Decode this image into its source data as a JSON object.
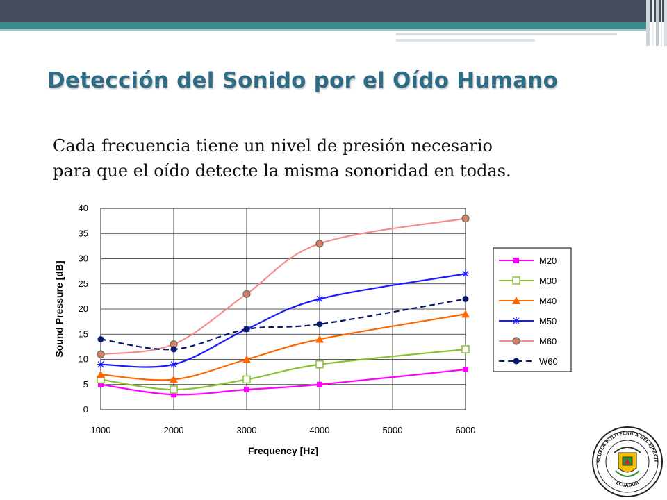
{
  "slide": {
    "title": "Detección del Sonido por el Oído Humano",
    "body_lines": [
      "Cada frecuencia tiene un nivel de presión necesario",
      "para que el oído detecte la misma sonoridad en todas."
    ]
  },
  "seal": {
    "arc_text": "ESCUELA POLITECNICA DEL EJERCITO",
    "bottom_text": "ECUADOR"
  },
  "colors": {
    "title": "#2e6c86",
    "topbar": "#454c5c",
    "teal_band": "#3b8b8c"
  },
  "chart_data": {
    "type": "line",
    "xlabel": "Frequency  [Hz]",
    "ylabel": "Sound Pressure [dB]",
    "x": [
      1000,
      2000,
      3000,
      4000,
      5000,
      6000
    ],
    "xlim": [
      1000,
      6000
    ],
    "ylim": [
      0,
      40
    ],
    "yticks": [
      0,
      5,
      10,
      15,
      20,
      25,
      30,
      35,
      40
    ],
    "grid": true,
    "legend_position": "right",
    "series": [
      {
        "name": "M20",
        "color": "#ff00ff",
        "marker": "square",
        "dash": false,
        "points": [
          [
            1000,
            5
          ],
          [
            2000,
            3
          ],
          [
            3000,
            4
          ],
          [
            4000,
            5
          ],
          [
            6000,
            8
          ]
        ]
      },
      {
        "name": "M30",
        "color": "#88c030",
        "marker": "open-square",
        "dash": false,
        "points": [
          [
            1000,
            6
          ],
          [
            2000,
            4
          ],
          [
            3000,
            6
          ],
          [
            4000,
            9
          ],
          [
            6000,
            12
          ]
        ]
      },
      {
        "name": "M40",
        "color": "#ff6600",
        "marker": "triangle",
        "dash": false,
        "points": [
          [
            1000,
            7
          ],
          [
            2000,
            6
          ],
          [
            3000,
            10
          ],
          [
            4000,
            14
          ],
          [
            6000,
            19
          ]
        ]
      },
      {
        "name": "M50",
        "color": "#1a1aff",
        "marker": "star",
        "dash": false,
        "points": [
          [
            1000,
            9
          ],
          [
            2000,
            9
          ],
          [
            3000,
            16
          ],
          [
            4000,
            22
          ],
          [
            6000,
            27
          ]
        ]
      },
      {
        "name": "M60",
        "color": "#f58c8c",
        "marker": "circle-hex",
        "dash": false,
        "points": [
          [
            1000,
            11
          ],
          [
            2000,
            13
          ],
          [
            3000,
            23
          ],
          [
            4000,
            33
          ],
          [
            6000,
            38
          ]
        ]
      },
      {
        "name": "W60",
        "color": "#0a1a6a",
        "marker": "circle",
        "dash": true,
        "points": [
          [
            1000,
            14
          ],
          [
            2000,
            12
          ],
          [
            3000,
            16
          ],
          [
            4000,
            17
          ],
          [
            6000,
            22
          ]
        ]
      }
    ]
  }
}
